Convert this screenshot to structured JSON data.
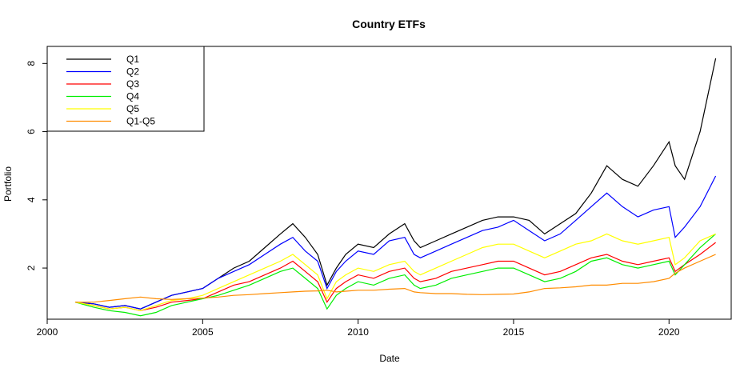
{
  "chart_data": {
    "type": "line",
    "title": "Country ETFs",
    "xlabel": "Date",
    "ylabel": "Portfolio",
    "xlim": [
      2000,
      2022
    ],
    "ylim": [
      0.5,
      8.5
    ],
    "xticks": [
      2000,
      2005,
      2010,
      2015,
      2020
    ],
    "yticks": [
      2,
      4,
      6,
      8
    ],
    "legend": "top-left",
    "grid": false,
    "series": [
      {
        "name": "Q1",
        "color": "#000000",
        "x": [
          2000.9,
          2001.5,
          2002.0,
          2002.5,
          2003.0,
          2003.5,
          2004.0,
          2004.5,
          2005.0,
          2005.5,
          2006.0,
          2006.5,
          2007.0,
          2007.5,
          2007.9,
          2008.3,
          2008.7,
          2009.0,
          2009.3,
          2009.6,
          2010.0,
          2010.5,
          2011.0,
          2011.5,
          2011.8,
          2012.0,
          2012.5,
          2013.0,
          2013.5,
          2014.0,
          2014.5,
          2015.0,
          2015.5,
          2016.0,
          2016.5,
          2017.0,
          2017.5,
          2018.0,
          2018.5,
          2019.0,
          2019.5,
          2020.0,
          2020.2,
          2020.5,
          2021.0,
          2021.5
        ],
        "y": [
          1.0,
          0.95,
          0.85,
          0.9,
          0.8,
          1.0,
          1.2,
          1.3,
          1.4,
          1.7,
          2.0,
          2.2,
          2.6,
          3.0,
          3.3,
          2.9,
          2.4,
          1.5,
          2.0,
          2.4,
          2.7,
          2.6,
          3.0,
          3.3,
          2.8,
          2.6,
          2.8,
          3.0,
          3.2,
          3.4,
          3.5,
          3.5,
          3.4,
          3.0,
          3.3,
          3.6,
          4.2,
          5.0,
          4.6,
          4.4,
          5.0,
          5.7,
          5.0,
          4.6,
          6.0,
          8.15
        ]
      },
      {
        "name": "Q2",
        "color": "#0000ff",
        "x": [
          2000.9,
          2001.5,
          2002.0,
          2002.5,
          2003.0,
          2003.5,
          2004.0,
          2004.5,
          2005.0,
          2005.5,
          2006.0,
          2006.5,
          2007.0,
          2007.5,
          2007.9,
          2008.3,
          2008.7,
          2009.0,
          2009.3,
          2009.6,
          2010.0,
          2010.5,
          2011.0,
          2011.5,
          2011.8,
          2012.0,
          2012.5,
          2013.0,
          2013.5,
          2014.0,
          2014.5,
          2015.0,
          2015.5,
          2016.0,
          2016.5,
          2017.0,
          2017.5,
          2018.0,
          2018.5,
          2019.0,
          2019.5,
          2020.0,
          2020.2,
          2020.5,
          2021.0,
          2021.5
        ],
        "y": [
          1.0,
          0.95,
          0.85,
          0.9,
          0.8,
          1.0,
          1.2,
          1.3,
          1.4,
          1.7,
          1.9,
          2.1,
          2.4,
          2.7,
          2.9,
          2.5,
          2.2,
          1.4,
          1.9,
          2.2,
          2.5,
          2.4,
          2.8,
          2.9,
          2.4,
          2.3,
          2.5,
          2.7,
          2.9,
          3.1,
          3.2,
          3.4,
          3.1,
          2.8,
          3.0,
          3.4,
          3.8,
          4.2,
          3.8,
          3.5,
          3.7,
          3.8,
          2.9,
          3.2,
          3.8,
          4.7
        ]
      },
      {
        "name": "Q3",
        "color": "#ff0000",
        "x": [
          2000.9,
          2001.5,
          2002.0,
          2002.5,
          2003.0,
          2003.5,
          2004.0,
          2004.5,
          2005.0,
          2005.5,
          2006.0,
          2006.5,
          2007.0,
          2007.5,
          2007.9,
          2008.3,
          2008.7,
          2009.0,
          2009.3,
          2009.6,
          2010.0,
          2010.5,
          2011.0,
          2011.5,
          2011.8,
          2012.0,
          2012.5,
          2013.0,
          2013.5,
          2014.0,
          2014.5,
          2015.0,
          2015.5,
          2016.0,
          2016.5,
          2017.0,
          2017.5,
          2018.0,
          2018.5,
          2019.0,
          2019.5,
          2020.0,
          2020.2,
          2020.5,
          2021.0,
          2021.5
        ],
        "y": [
          1.0,
          0.9,
          0.8,
          0.85,
          0.75,
          0.85,
          1.0,
          1.05,
          1.1,
          1.3,
          1.5,
          1.6,
          1.8,
          2.0,
          2.2,
          1.9,
          1.6,
          1.0,
          1.4,
          1.6,
          1.8,
          1.7,
          1.9,
          2.0,
          1.7,
          1.6,
          1.7,
          1.9,
          2.0,
          2.1,
          2.2,
          2.2,
          2.0,
          1.8,
          1.9,
          2.1,
          2.3,
          2.4,
          2.2,
          2.1,
          2.2,
          2.3,
          1.9,
          2.1,
          2.4,
          2.75
        ]
      },
      {
        "name": "Q4",
        "color": "#00ee00",
        "x": [
          2000.9,
          2001.5,
          2002.0,
          2002.5,
          2003.0,
          2003.5,
          2004.0,
          2004.5,
          2005.0,
          2005.5,
          2006.0,
          2006.5,
          2007.0,
          2007.5,
          2007.9,
          2008.3,
          2008.7,
          2009.0,
          2009.3,
          2009.6,
          2010.0,
          2010.5,
          2011.0,
          2011.5,
          2011.8,
          2012.0,
          2012.5,
          2013.0,
          2013.5,
          2014.0,
          2014.5,
          2015.0,
          2015.5,
          2016.0,
          2016.5,
          2017.0,
          2017.5,
          2018.0,
          2018.5,
          2019.0,
          2019.5,
          2020.0,
          2020.2,
          2020.5,
          2021.0,
          2021.5
        ],
        "y": [
          1.0,
          0.85,
          0.75,
          0.7,
          0.6,
          0.7,
          0.9,
          1.0,
          1.1,
          1.2,
          1.35,
          1.5,
          1.7,
          1.9,
          2.0,
          1.7,
          1.4,
          0.8,
          1.2,
          1.4,
          1.6,
          1.5,
          1.7,
          1.8,
          1.5,
          1.4,
          1.5,
          1.7,
          1.8,
          1.9,
          2.0,
          2.0,
          1.8,
          1.6,
          1.7,
          1.9,
          2.2,
          2.3,
          2.1,
          2.0,
          2.1,
          2.2,
          1.8,
          2.1,
          2.6,
          3.0
        ]
      },
      {
        "name": "Q5",
        "color": "#ffff00",
        "x": [
          2000.9,
          2001.5,
          2002.0,
          2002.5,
          2003.0,
          2003.5,
          2004.0,
          2004.5,
          2005.0,
          2005.5,
          2006.0,
          2006.5,
          2007.0,
          2007.5,
          2007.9,
          2008.3,
          2008.7,
          2009.0,
          2009.3,
          2009.6,
          2010.0,
          2010.5,
          2011.0,
          2011.5,
          2011.8,
          2012.0,
          2012.5,
          2013.0,
          2013.5,
          2014.0,
          2014.5,
          2015.0,
          2015.5,
          2016.0,
          2016.5,
          2017.0,
          2017.5,
          2018.0,
          2018.5,
          2019.0,
          2019.5,
          2020.0,
          2020.2,
          2020.5,
          2021.0,
          2021.5
        ],
        "y": [
          1.0,
          0.9,
          0.8,
          0.85,
          0.75,
          0.9,
          1.05,
          1.1,
          1.2,
          1.4,
          1.6,
          1.8,
          2.0,
          2.2,
          2.4,
          2.1,
          1.8,
          1.1,
          1.6,
          1.8,
          2.0,
          1.9,
          2.1,
          2.2,
          1.9,
          1.8,
          2.0,
          2.2,
          2.4,
          2.6,
          2.7,
          2.7,
          2.5,
          2.3,
          2.5,
          2.7,
          2.8,
          3.0,
          2.8,
          2.7,
          2.8,
          2.9,
          2.1,
          2.3,
          2.8,
          3.0
        ]
      },
      {
        "name": "Q1-Q5",
        "color": "#ff8c00",
        "x": [
          2000.9,
          2001.5,
          2002.0,
          2002.5,
          2003.0,
          2003.5,
          2004.0,
          2004.5,
          2005.0,
          2005.5,
          2006.0,
          2006.5,
          2007.0,
          2007.5,
          2007.9,
          2008.3,
          2008.7,
          2009.0,
          2009.3,
          2009.6,
          2010.0,
          2010.5,
          2011.0,
          2011.5,
          2011.8,
          2012.0,
          2012.5,
          2013.0,
          2013.5,
          2014.0,
          2014.5,
          2015.0,
          2015.5,
          2016.0,
          2016.5,
          2017.0,
          2017.5,
          2018.0,
          2018.5,
          2019.0,
          2019.5,
          2020.0,
          2020.2,
          2020.5,
          2021.0,
          2021.5
        ],
        "y": [
          1.0,
          1.0,
          1.05,
          1.1,
          1.15,
          1.1,
          1.08,
          1.1,
          1.12,
          1.15,
          1.2,
          1.22,
          1.25,
          1.28,
          1.3,
          1.32,
          1.33,
          1.35,
          1.3,
          1.32,
          1.35,
          1.35,
          1.38,
          1.4,
          1.3,
          1.28,
          1.25,
          1.25,
          1.23,
          1.22,
          1.23,
          1.24,
          1.3,
          1.4,
          1.42,
          1.45,
          1.5,
          1.5,
          1.55,
          1.55,
          1.6,
          1.7,
          1.85,
          2.0,
          2.2,
          2.4
        ]
      }
    ]
  }
}
